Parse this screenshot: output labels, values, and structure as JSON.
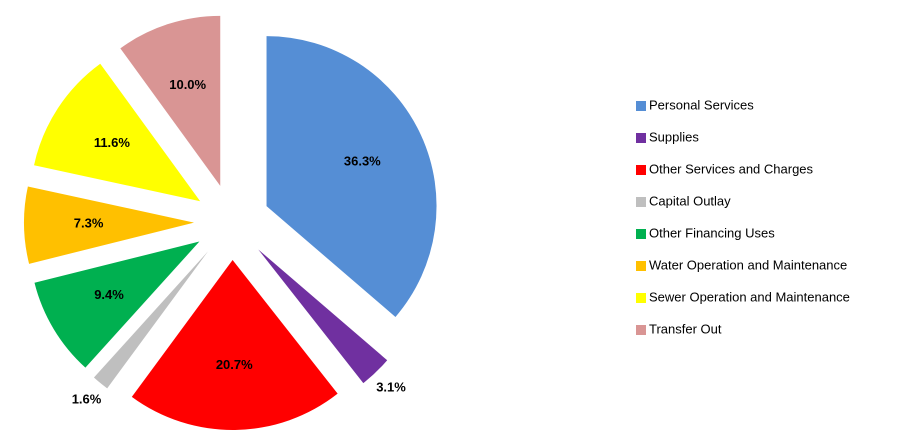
{
  "chart_data": {
    "type": "pie",
    "categories": [
      "Personal Services",
      "Supplies",
      "Other Services and Charges",
      "Capital Outlay",
      "Other Financing Uses",
      "Water Operation and Maintenance",
      "Sewer Operation and Maintenance",
      "Transfer Out"
    ],
    "values": [
      36.3,
      3.1,
      20.7,
      1.6,
      9.4,
      7.3,
      11.6,
      10.0
    ],
    "value_labels": [
      "36.3%",
      "3.1%",
      "20.7%",
      "1.6%",
      "9.4%",
      "7.3%",
      "11.6%",
      "10.0%"
    ],
    "colors": [
      "#558ED5",
      "#7030A0",
      "#FF0000",
      "#BFBFBF",
      "#00B050",
      "#FFC000",
      "#FFFF00",
      "#D99594"
    ],
    "legend": "right"
  }
}
